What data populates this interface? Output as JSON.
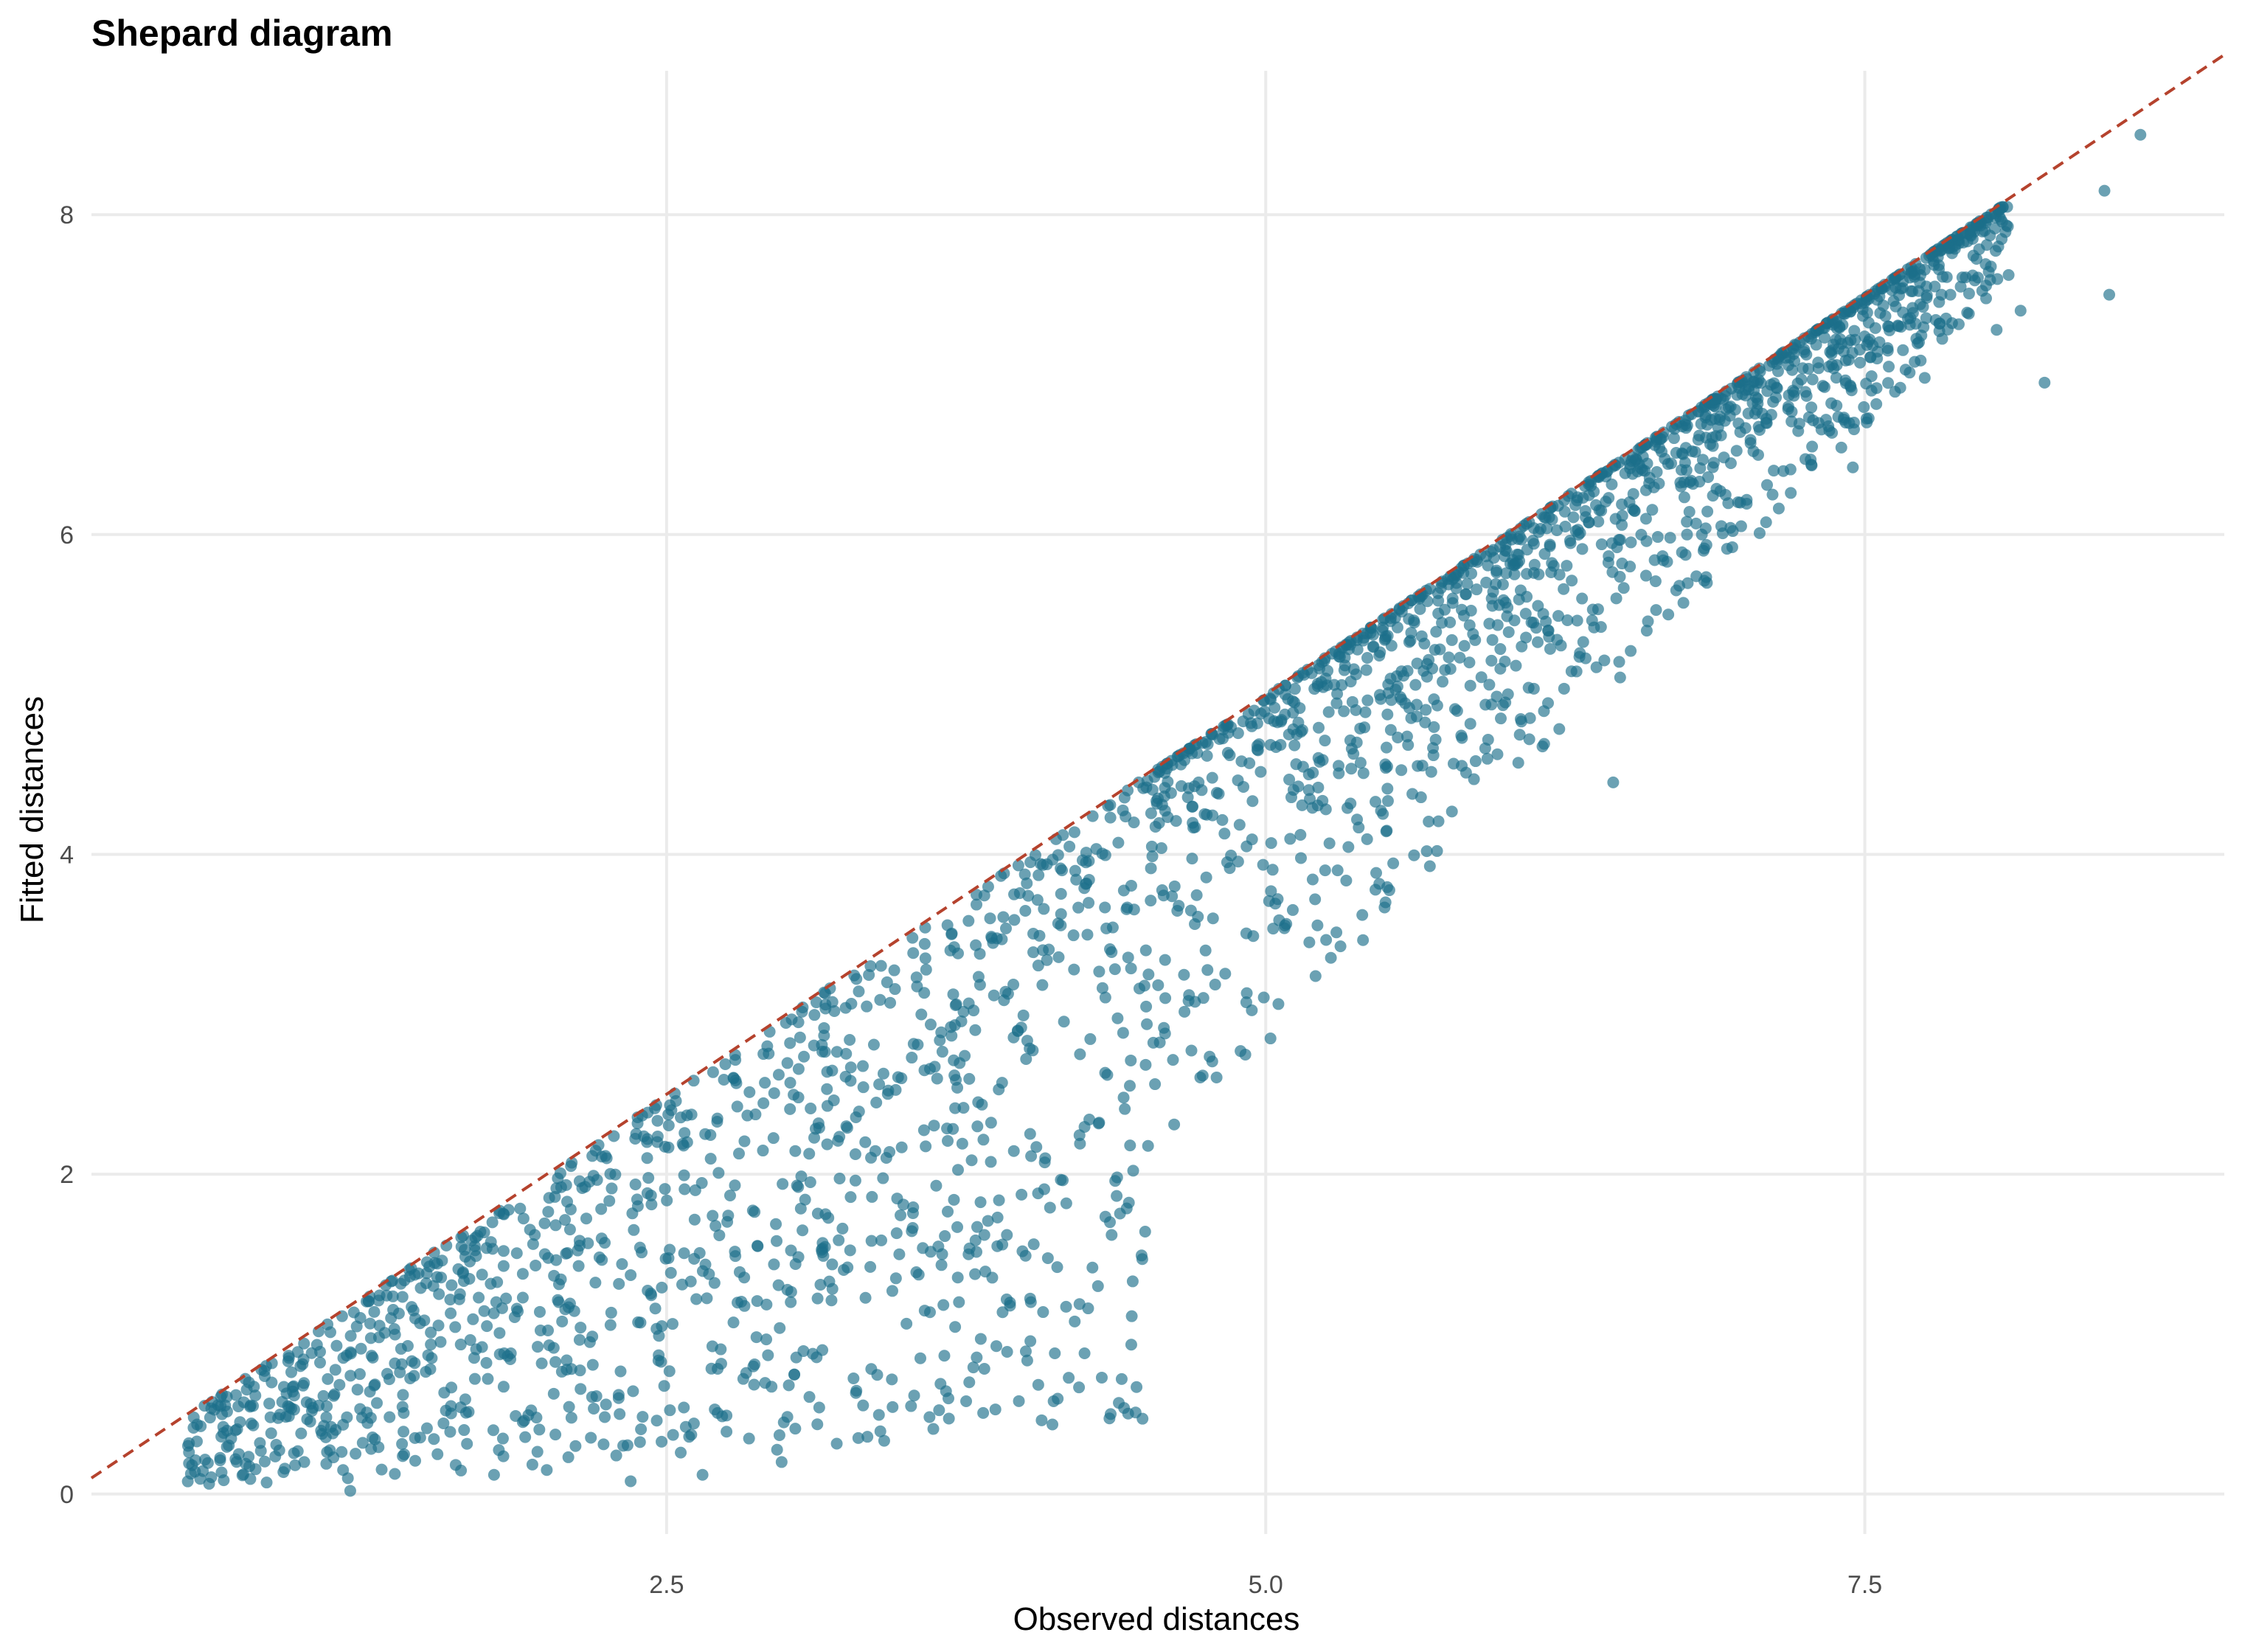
{
  "chart_data": {
    "type": "scatter",
    "title": "Shepard diagram",
    "xlabel": "Observed distances",
    "ylabel": "Fitted distances",
    "xlim": [
      0.1,
      9.0
    ],
    "ylim": [
      -0.25,
      8.9
    ],
    "x_ticks": [
      2.5,
      5.0,
      7.5
    ],
    "x_tick_labels": [
      "2.5",
      "5.0",
      "7.5"
    ],
    "y_ticks": [
      0,
      2,
      4,
      6,
      8
    ],
    "y_tick_labels": [
      "0",
      "2",
      "4",
      "6",
      "8"
    ],
    "grid": true,
    "legend": "none",
    "reference_line": {
      "slope": 1,
      "intercept": 0,
      "style": "dashed",
      "color": "#b5422d"
    },
    "point_color": "#1b6e8a",
    "point_opacity": 0.65,
    "point_count": 2500,
    "series": [
      {
        "points": [
          [
            0.52,
            0.18
          ],
          [
            0.65,
            0.42
          ],
          [
            0.72,
            0.45
          ],
          [
            0.85,
            0.38
          ],
          [
            0.92,
            0.55
          ],
          [
            0.95,
            0.18
          ],
          [
            1.02,
            0.52
          ],
          [
            1.08,
            0.48
          ],
          [
            1.1,
            0.42
          ],
          [
            1.15,
            0.15
          ],
          [
            1.18,
            0.02
          ],
          [
            1.22,
            0.75
          ],
          [
            1.3,
            0.98
          ],
          [
            1.35,
            1.1
          ],
          [
            1.4,
            0.62
          ],
          [
            1.45,
            0.35
          ],
          [
            1.52,
            0.85
          ],
          [
            1.55,
            1.25
          ],
          [
            1.6,
            0.55
          ],
          [
            1.65,
            1.38
          ],
          [
            1.7,
            0.72
          ],
          [
            1.75,
            1.05
          ],
          [
            1.78,
            0.12
          ],
          [
            1.82,
            1.52
          ],
          [
            1.85,
            0.88
          ],
          [
            1.9,
            0.45
          ],
          [
            1.95,
            1.62
          ],
          [
            2.0,
            0.15
          ],
          [
            2.05,
            1.2
          ],
          [
            2.1,
            1.78
          ],
          [
            2.12,
            0.3
          ],
          [
            2.18,
            0.95
          ],
          [
            2.22,
            1.48
          ],
          [
            2.25,
            2.1
          ],
          [
            2.3,
            0.62
          ],
          [
            2.35,
            0.08
          ],
          [
            2.38,
            1.8
          ],
          [
            2.42,
            2.22
          ],
          [
            2.48,
            1.05
          ],
          [
            2.52,
            2.4
          ],
          [
            2.58,
            0.42
          ],
          [
            2.62,
            1.9
          ],
          [
            2.65,
            0.12
          ],
          [
            2.7,
            1.32
          ],
          [
            2.78,
            2.6
          ],
          [
            2.82,
            0.72
          ],
          [
            2.88,
            1.55
          ],
          [
            2.92,
            2.8
          ],
          [
            2.98,
            0.2
          ],
          [
            3.05,
            2.95
          ],
          [
            3.1,
            1.95
          ],
          [
            3.15,
            0.9
          ],
          [
            3.2,
            3.02
          ],
          [
            3.25,
            2.3
          ],
          [
            3.3,
            0.35
          ],
          [
            3.35,
            1.42
          ],
          [
            3.42,
            3.2
          ],
          [
            3.48,
            2.6
          ],
          [
            3.52,
            0.55
          ],
          [
            3.58,
            3.35
          ],
          [
            3.65,
            1.5
          ],
          [
            3.7,
            3.42
          ],
          [
            3.72,
            1.2
          ],
          [
            3.75,
            0.58
          ],
          [
            3.8,
            2.45
          ],
          [
            3.85,
            3.6
          ],
          [
            3.88,
            1.55
          ],
          [
            3.92,
            1.62
          ],
          [
            3.95,
            3.75
          ],
          [
            4.0,
            2.72
          ],
          [
            4.02,
            1.2
          ],
          [
            4.05,
            1.88
          ],
          [
            4.08,
            2.1
          ],
          [
            4.12,
            0.88
          ],
          [
            4.15,
            3.9
          ],
          [
            4.2,
            3.28
          ],
          [
            4.25,
            3.95
          ],
          [
            4.3,
            1.3
          ],
          [
            4.35,
            1.7
          ],
          [
            4.38,
            1.98
          ],
          [
            4.45,
            4.2
          ],
          [
            4.5,
            3.4
          ],
          [
            4.55,
            4.35
          ],
          [
            4.58,
            2.88
          ],
          [
            4.62,
            3.8
          ],
          [
            4.68,
            3.12
          ],
          [
            4.72,
            4.45
          ],
          [
            4.78,
            3.6
          ],
          [
            4.85,
            4.62
          ],
          [
            4.92,
            4.05
          ],
          [
            4.98,
            4.88
          ],
          [
            5.05,
            3.72
          ],
          [
            5.12,
            4.95
          ],
          [
            5.18,
            4.5
          ],
          [
            5.25,
            5.1
          ],
          [
            5.3,
            3.9
          ],
          [
            5.38,
            4.7
          ],
          [
            5.45,
            5.3
          ],
          [
            5.5,
            3.7
          ],
          [
            5.55,
            5.05
          ],
          [
            5.62,
            5.45
          ],
          [
            5.7,
            4.62
          ],
          [
            5.78,
            5.6
          ],
          [
            5.85,
            5.2
          ],
          [
            5.92,
            5.7
          ],
          [
            6.0,
            4.95
          ],
          [
            6.05,
            5.82
          ],
          [
            6.1,
            4.72
          ],
          [
            6.18,
            5.4
          ],
          [
            6.25,
            6.05
          ],
          [
            6.32,
            5.6
          ],
          [
            6.4,
            6.15
          ],
          [
            6.45,
            4.45
          ],
          [
            6.52,
            5.8
          ],
          [
            6.6,
            6.32
          ],
          [
            6.68,
            5.5
          ],
          [
            6.75,
            6.45
          ],
          [
            6.82,
            6.0
          ],
          [
            6.9,
            6.62
          ],
          [
            6.98,
            6.2
          ],
          [
            7.05,
            6.78
          ],
          [
            7.12,
            6.4
          ],
          [
            7.2,
            6.9
          ],
          [
            7.28,
            6.55
          ],
          [
            7.35,
            7.05
          ],
          [
            7.42,
            6.7
          ],
          [
            7.45,
            6.42
          ],
          [
            7.52,
            7.22
          ],
          [
            7.6,
            7.05
          ],
          [
            7.68,
            7.35
          ],
          [
            7.75,
            6.98
          ],
          [
            7.82,
            7.5
          ],
          [
            7.9,
            7.55
          ],
          [
            7.95,
            7.62
          ],
          [
            8.0,
            7.9
          ],
          [
            8.05,
            7.28
          ],
          [
            8.15,
            7.4
          ],
          [
            8.25,
            6.95
          ],
          [
            8.5,
            8.15
          ],
          [
            8.52,
            7.5
          ],
          [
            8.65,
            8.5
          ]
        ]
      }
    ]
  }
}
